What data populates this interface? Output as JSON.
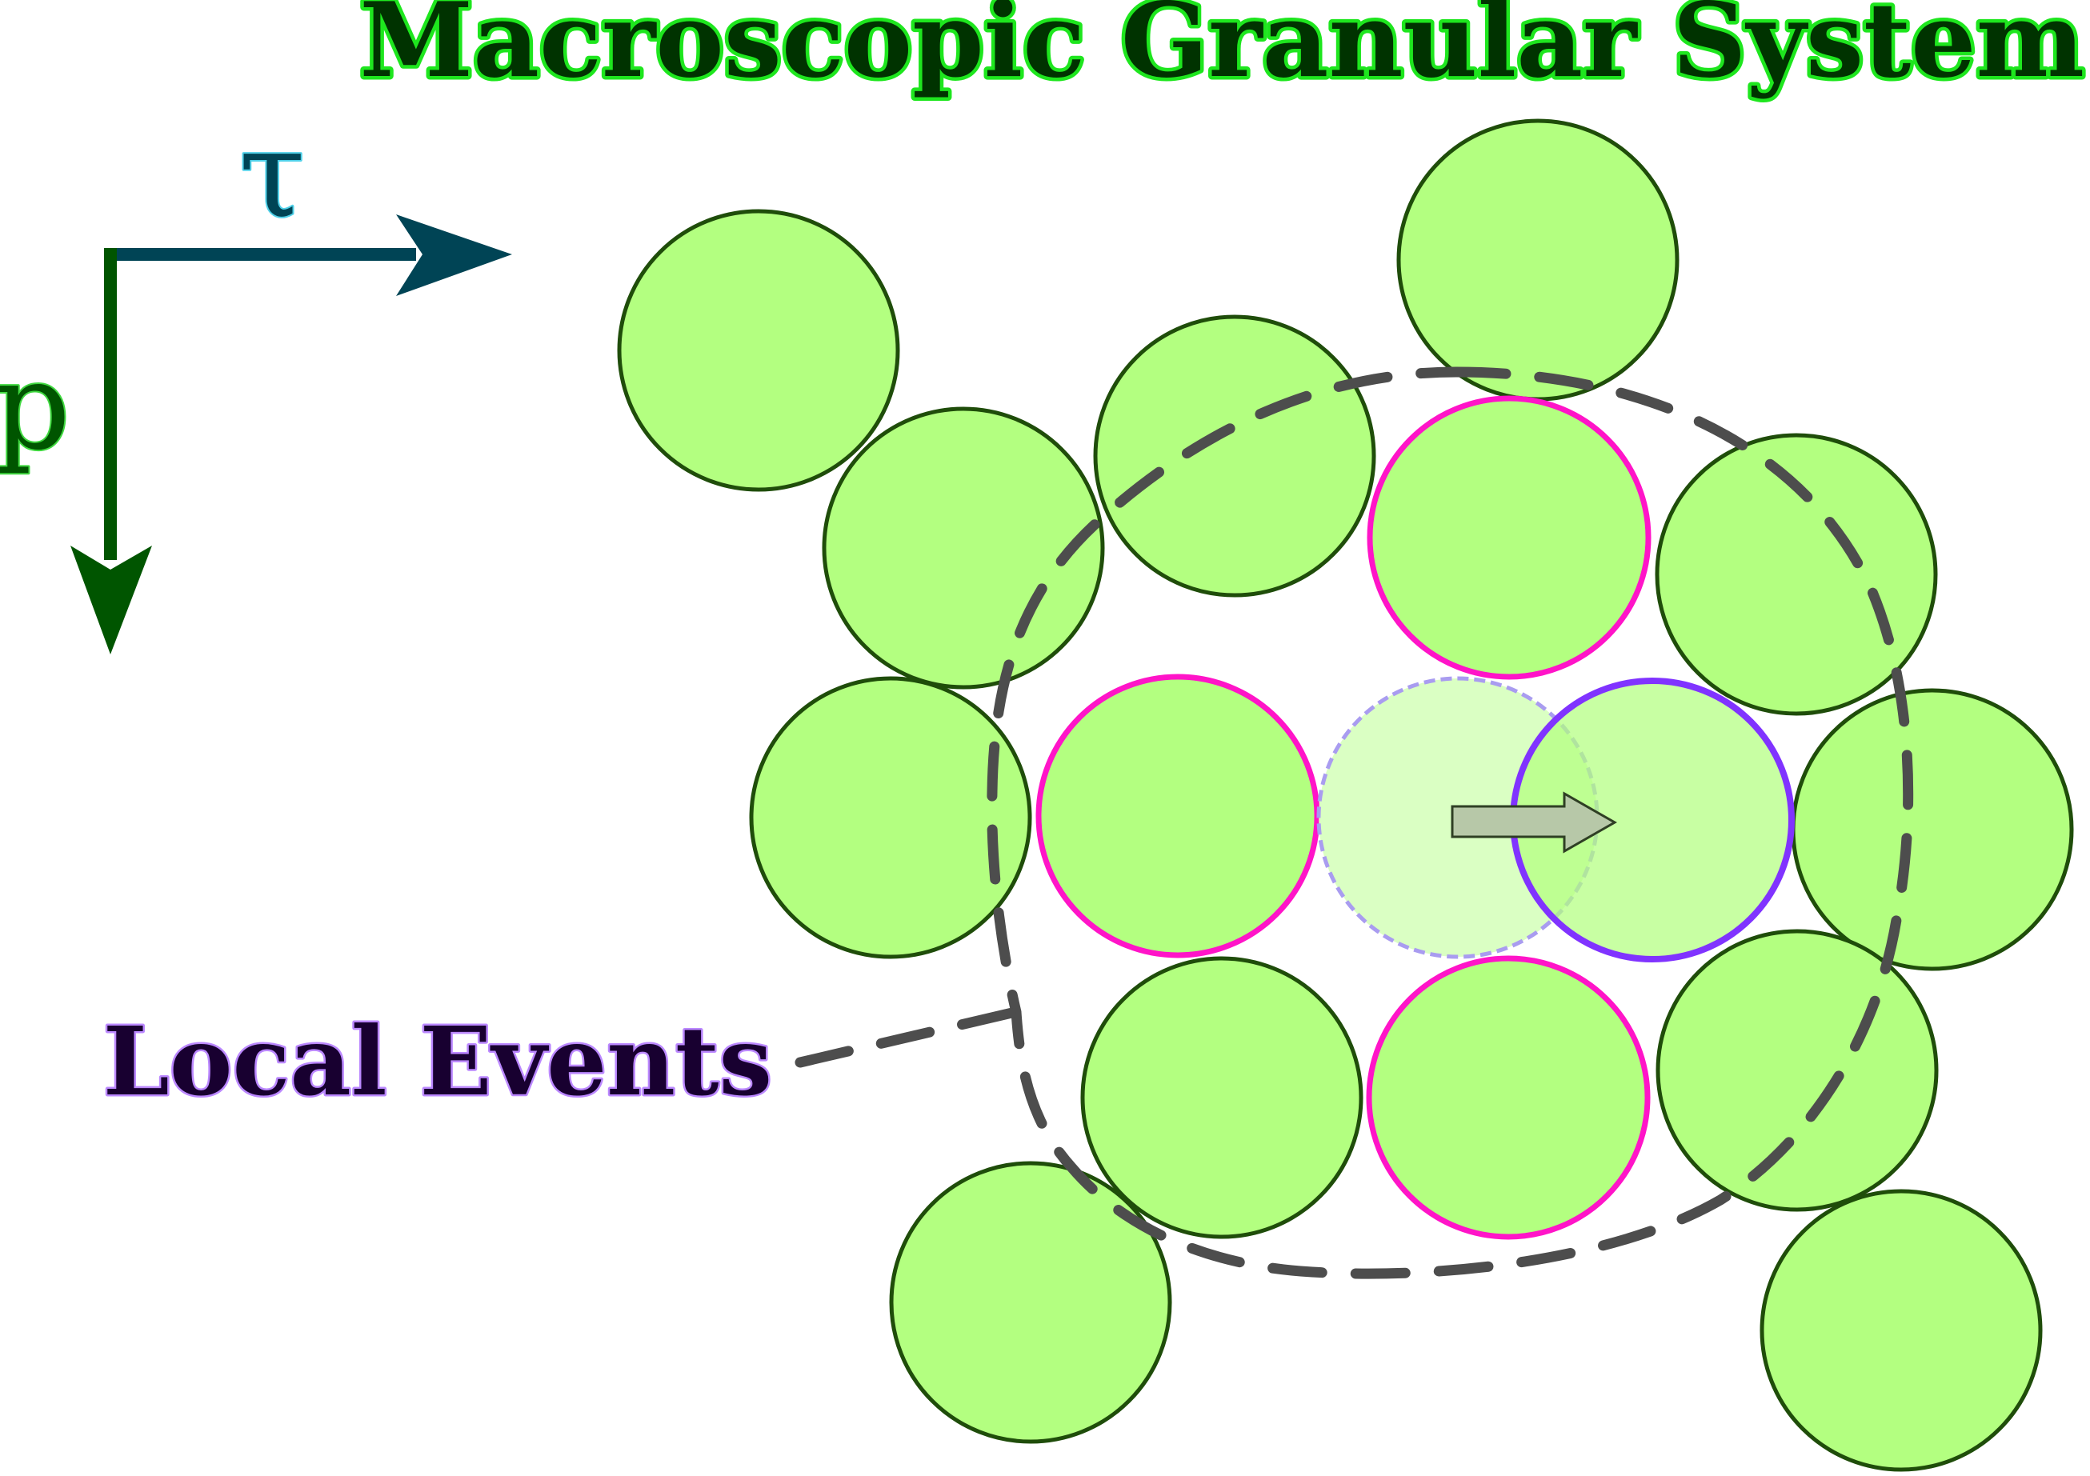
{
  "title": "Macroscopic Granular System",
  "local_events_label": "Local Events",
  "axes": {
    "horizontal_label": "τ",
    "vertical_label": "p"
  },
  "colors": {
    "grain_fill": "#b3ff80",
    "grain_stroke": "#1f4d0a",
    "highlight_stroke": "#ff14c8",
    "moving_stroke": "#8033ff",
    "title_fill": "#003300",
    "title_glow": "#1ee61e",
    "events_fill": "#180030",
    "events_glow": "#bb88ff",
    "tau_arrow": "#004455",
    "p_arrow": "#005500",
    "dashed_outline": "#4d4d4d",
    "displacement_arrow_fill": "#b7c8a8"
  }
}
